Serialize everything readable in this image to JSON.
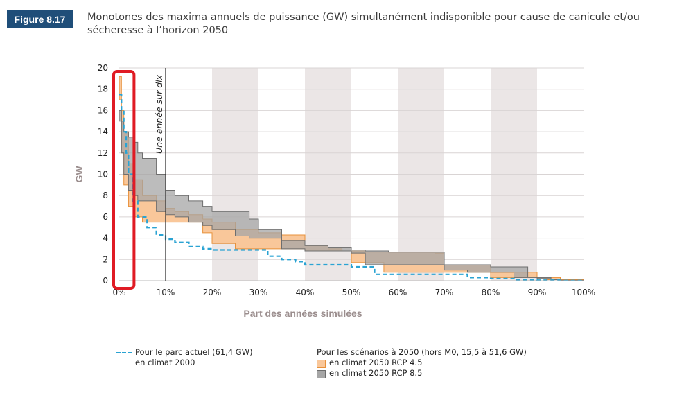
{
  "figure": {
    "badge": "Figure 8.17",
    "title": "Monotones des maxima annuels de puissance (GW) simultanément indisponible pour cause de canicule et/ou sécheresse à l’horizon 2050"
  },
  "colors": {
    "current": "#2aa3d3",
    "rcp45_fill": "#f9c79a",
    "rcp45_line": "#e8913b",
    "rcp85_fill": "#a6a6a6",
    "rcp85_line": "#6e6e6e",
    "band": "#ebe6e6",
    "highlight": "#e01b24"
  },
  "chart_data": {
    "type": "area",
    "xlabel": "Part des années simulées",
    "ylabel": "GW",
    "xlim": [
      0,
      100
    ],
    "ylim": [
      0,
      20
    ],
    "x_ticks": [
      "0%",
      "10%",
      "20%",
      "30%",
      "40%",
      "50%",
      "60%",
      "70%",
      "80%",
      "90%",
      "100%"
    ],
    "y_ticks": [
      "0",
      "2",
      "4",
      "6",
      "8",
      "10",
      "12",
      "14",
      "16",
      "18",
      "20"
    ],
    "annotation": {
      "label": "Une année sur dix",
      "x": 10
    },
    "series": [
      {
        "name": "Pour le parc actuel (61,4 GW) en climat 2000",
        "kind": "dashed-line",
        "x": [
          0,
          0.5,
          1,
          1.5,
          2,
          3,
          4,
          6,
          8,
          10,
          12,
          15,
          18,
          20,
          25,
          30,
          32,
          35,
          38,
          40,
          45,
          50,
          53,
          55,
          60,
          65,
          70,
          75,
          80,
          85,
          90,
          95,
          100
        ],
        "y": [
          17.5,
          16,
          14,
          12,
          10,
          7.5,
          6,
          5,
          4.3,
          3.9,
          3.6,
          3.2,
          3.0,
          2.9,
          2.9,
          2.9,
          2.3,
          2.0,
          1.8,
          1.5,
          1.5,
          1.3,
          1.3,
          0.6,
          0.6,
          0.6,
          0.6,
          0.3,
          0.2,
          0.1,
          0.05,
          0.02,
          0
        ]
      },
      {
        "name": "en climat 2050 RCP 4.5",
        "kind": "band",
        "x": [
          0,
          0.5,
          1,
          2,
          3,
          5,
          8,
          10,
          12,
          15,
          18,
          20,
          25,
          30,
          35,
          40,
          45,
          48,
          50,
          53,
          55,
          57,
          60,
          63,
          65,
          68,
          70,
          73,
          75,
          77,
          78,
          80,
          82,
          85,
          88,
          90,
          92,
          95,
          100
        ],
        "upper": [
          19.2,
          16,
          14,
          11,
          9.5,
          8,
          7.5,
          6.8,
          6.5,
          6.2,
          5.8,
          5.5,
          4.8,
          4.5,
          4.3,
          3.3,
          3.0,
          2.8,
          2.8,
          2.7,
          2.7,
          2.7,
          2.7,
          2.7,
          2.7,
          2.6,
          1.5,
          1.5,
          1.5,
          1.5,
          1.5,
          0.8,
          0.8,
          0.8,
          0.8,
          0.3,
          0.3,
          0.1,
          0
        ],
        "lower": [
          17,
          12,
          9,
          7,
          6,
          5.5,
          5.5,
          5.5,
          5.5,
          5.5,
          4.5,
          3.5,
          3.0,
          3.0,
          3.0,
          2.8,
          2.8,
          2.8,
          1.7,
          1.7,
          1.7,
          0.8,
          0.8,
          0.8,
          0.8,
          0.8,
          0.8,
          0.8,
          0.8,
          0.8,
          0.8,
          0.3,
          0.3,
          0.3,
          0.3,
          0.2,
          0.1,
          0.05,
          0
        ]
      },
      {
        "name": "en climat 2050 RCP 8.5",
        "kind": "band",
        "x": [
          0,
          0.5,
          1,
          2,
          3,
          4,
          5,
          8,
          10,
          12,
          15,
          18,
          20,
          25,
          28,
          30,
          35,
          40,
          45,
          50,
          53,
          55,
          58,
          60,
          65,
          70,
          75,
          78,
          80,
          83,
          85,
          88,
          90,
          93,
          95,
          100
        ],
        "upper": [
          16,
          15,
          14,
          13.5,
          13,
          12,
          11.5,
          10,
          8.5,
          8,
          7.5,
          7,
          6.5,
          6.5,
          5.8,
          4.8,
          3.8,
          3.3,
          3.1,
          2.9,
          2.8,
          2.8,
          2.7,
          2.7,
          2.7,
          1.5,
          1.5,
          1.5,
          1.3,
          1.3,
          1.3,
          0.3,
          0.3,
          0.1,
          0.05,
          0
        ],
        "lower": [
          15,
          12,
          10,
          8.5,
          8,
          7.5,
          7.5,
          6.5,
          6.2,
          6.0,
          5.5,
          5.2,
          4.8,
          4.2,
          4.0,
          4.0,
          3.0,
          2.8,
          2.8,
          2.6,
          1.5,
          1.5,
          1.5,
          1.5,
          1.5,
          1.0,
          0.8,
          0.8,
          0.8,
          0.8,
          0.3,
          0.3,
          0.2,
          0.1,
          0.05,
          0
        ]
      }
    ],
    "shaded_bands": [
      [
        20,
        30
      ],
      [
        40,
        50
      ],
      [
        60,
        70
      ],
      [
        80,
        90
      ]
    ],
    "highlight_box": [
      0,
      2
    ]
  },
  "legend": {
    "current_line1": "Pour le parc actuel (61,4 GW)",
    "current_line2": "en climat 2000",
    "scenarios_title": "Pour les scénarios à 2050 (hors M0, 15,5 à 51,6 GW)",
    "rcp45": "en climat 2050 RCP 4.5",
    "rcp85": "en climat 2050 RCP 8.5"
  }
}
